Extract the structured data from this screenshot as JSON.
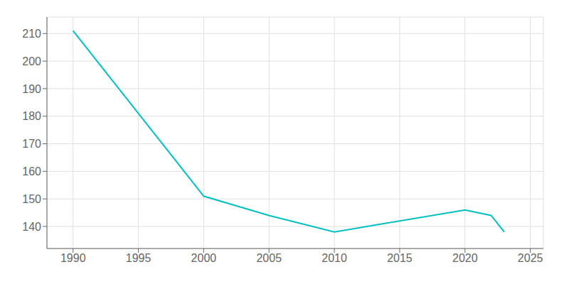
{
  "chart_data": {
    "type": "line",
    "x": [
      1990,
      2000,
      2005,
      2010,
      2020,
      2022,
      2023
    ],
    "values": [
      211,
      151,
      144,
      138,
      146,
      144,
      138
    ],
    "color": "#00BFBF",
    "xlim": [
      1988,
      2026
    ],
    "xticks": [
      1990,
      1995,
      2000,
      2005,
      2010,
      2015,
      2020,
      2025
    ],
    "ylim": [
      132,
      216
    ],
    "yticks": [
      140,
      150,
      160,
      170,
      180,
      190,
      200,
      210
    ],
    "grid": true
  }
}
